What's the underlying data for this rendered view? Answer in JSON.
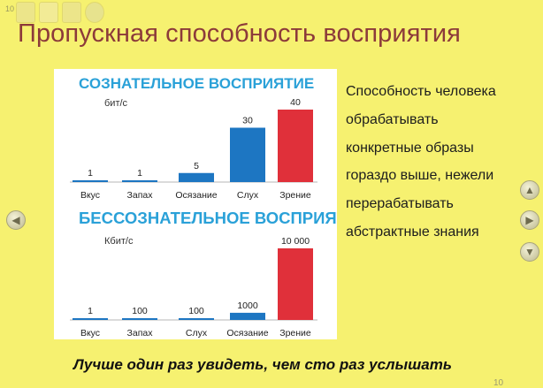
{
  "slide": {
    "counter_top": "10",
    "title": "Пропускная способность восприятия",
    "text_lines": [
      "Способность человека",
      "обрабатывать",
      "конкретные образы",
      "гораздо выше, нежели",
      "перерабатывать",
      "абстрактные знания"
    ],
    "footer": "Лучше один раз увидеть, чем сто раз услышать",
    "slide_number": "10"
  },
  "nav": {
    "prev_icon": "chevron-left-icon",
    "up_icon": "chevron-up-icon",
    "next_icon": "chevron-right-icon",
    "down_icon": "chevron-down-icon"
  },
  "colors": {
    "background": "#f6f170",
    "title": "#8c3a3a",
    "chart_heading": "#2aa1d8",
    "bar_blue": "#1d76c2",
    "bar_red": "#e0303a"
  },
  "chart_data": [
    {
      "type": "bar",
      "title": "СОЗНАТЕЛЬНОЕ ВОСПРИЯТИЕ",
      "unit": "бит/с",
      "categories": [
        "Вкус",
        "Запах",
        "Осязание",
        "Слух",
        "Зрение"
      ],
      "values": [
        1,
        1,
        5,
        30,
        40
      ],
      "labels": [
        "1",
        "1",
        "5",
        "30",
        "40"
      ],
      "ylim": [
        0,
        40
      ],
      "highlight_color": "#e0303a",
      "base_color": "#1d76c2"
    },
    {
      "type": "bar",
      "title": "БЕССОЗНАТЕЛЬНОЕ ВОСПРИЯТИЕ",
      "unit": "Кбит/с",
      "categories": [
        "Вкус",
        "Запах",
        "Слух",
        "Осязание",
        "Зрение"
      ],
      "values": [
        1,
        100,
        100,
        1000,
        10000
      ],
      "labels": [
        "1",
        "100",
        "100",
        "1000",
        "10 000"
      ],
      "ylim": [
        0,
        10000
      ],
      "highlight_color": "#e0303a",
      "base_color": "#1d76c2"
    }
  ]
}
